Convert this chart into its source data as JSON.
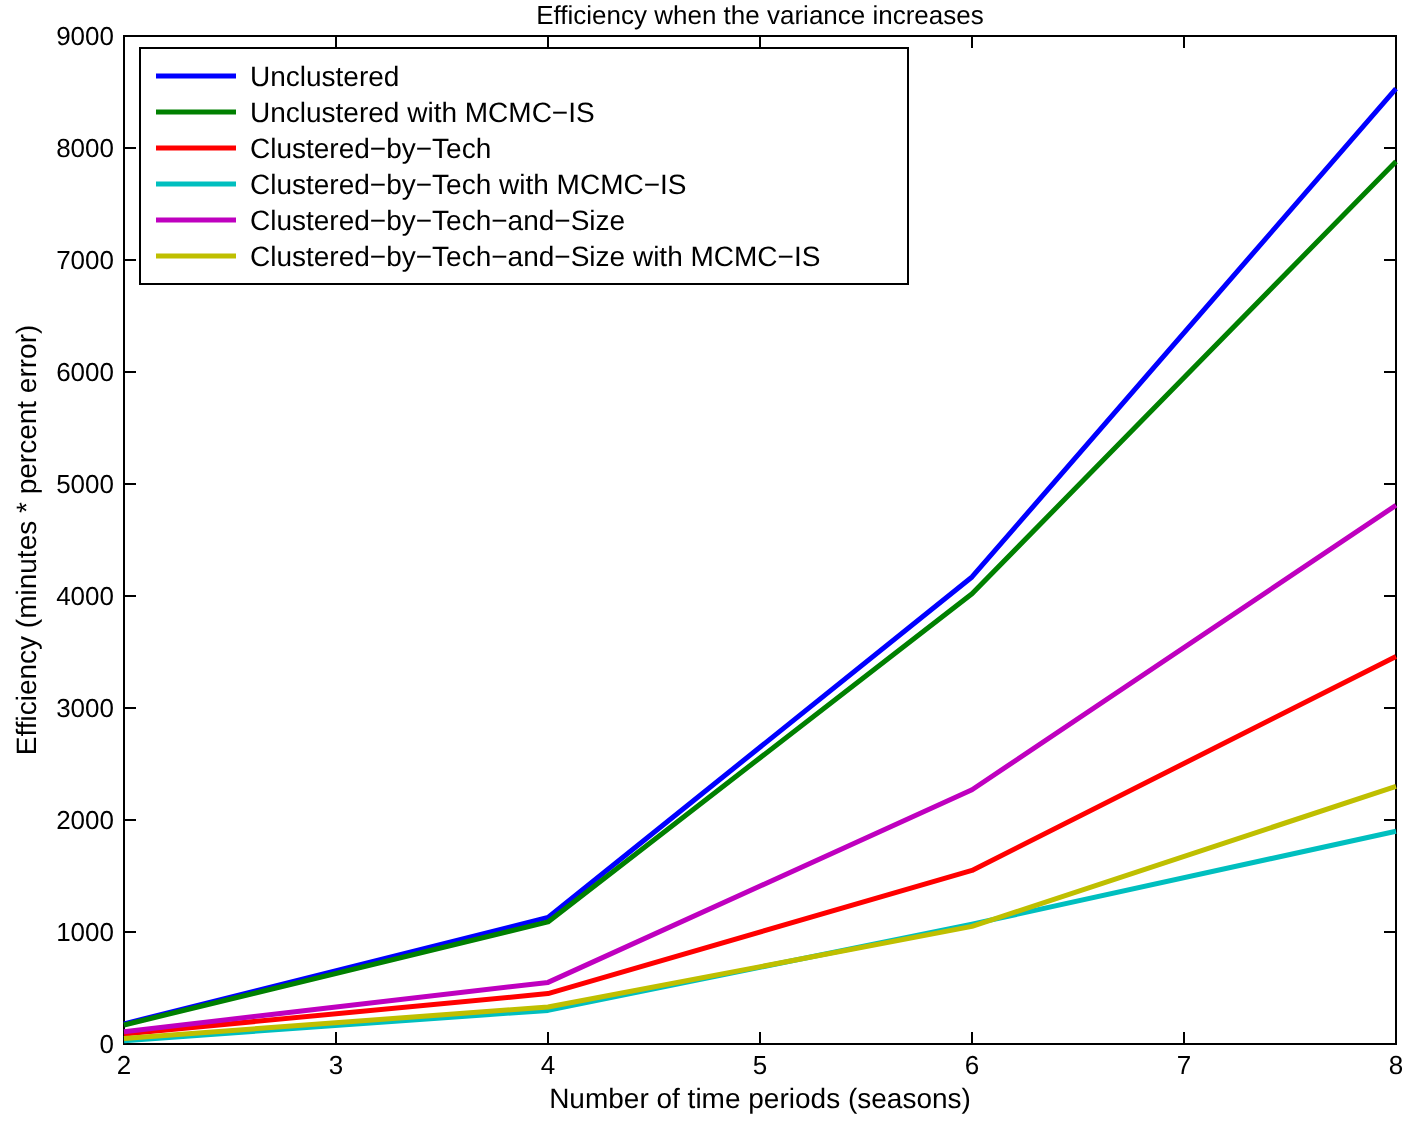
{
  "chart_data": {
    "type": "line",
    "title": "Efficiency when the variance increases",
    "xlabel": "Number of time periods (seasons)",
    "ylabel": "Efficiency (minutes * percent error)",
    "x": [
      2,
      4,
      6,
      8
    ],
    "xlim": [
      2,
      8
    ],
    "xticks": [
      2,
      3,
      4,
      5,
      6,
      7,
      8
    ],
    "ylim": [
      0,
      9000
    ],
    "yticks": [
      0,
      1000,
      2000,
      3000,
      4000,
      5000,
      6000,
      7000,
      8000,
      9000
    ],
    "grid": false,
    "legend": "top left",
    "marker": "none",
    "line_style": "solid",
    "series": [
      {
        "name": "Unclustered",
        "color": "#0000ff",
        "values": [
          180,
          1130,
          4170,
          8530
        ]
      },
      {
        "name": "Unclustered with MCMC−IS",
        "color": "#008000",
        "values": [
          170,
          1090,
          4020,
          7880
        ]
      },
      {
        "name": "Clustered−by−Tech",
        "color": "#ff0000",
        "values": [
          90,
          450,
          1550,
          3460
        ]
      },
      {
        "name": "Clustered−by−Tech with MCMC−IS",
        "color": "#00bfbf",
        "values": [
          30,
          300,
          1070,
          1900
        ]
      },
      {
        "name": "Clustered−by−Tech−and−Size",
        "color": "#bf00bf",
        "values": [
          110,
          550,
          2270,
          4810
        ]
      },
      {
        "name": "Clustered−by−Tech−and−Size with MCMC−IS",
        "color": "#bfbf00",
        "values": [
          50,
          330,
          1050,
          2300
        ]
      }
    ]
  }
}
